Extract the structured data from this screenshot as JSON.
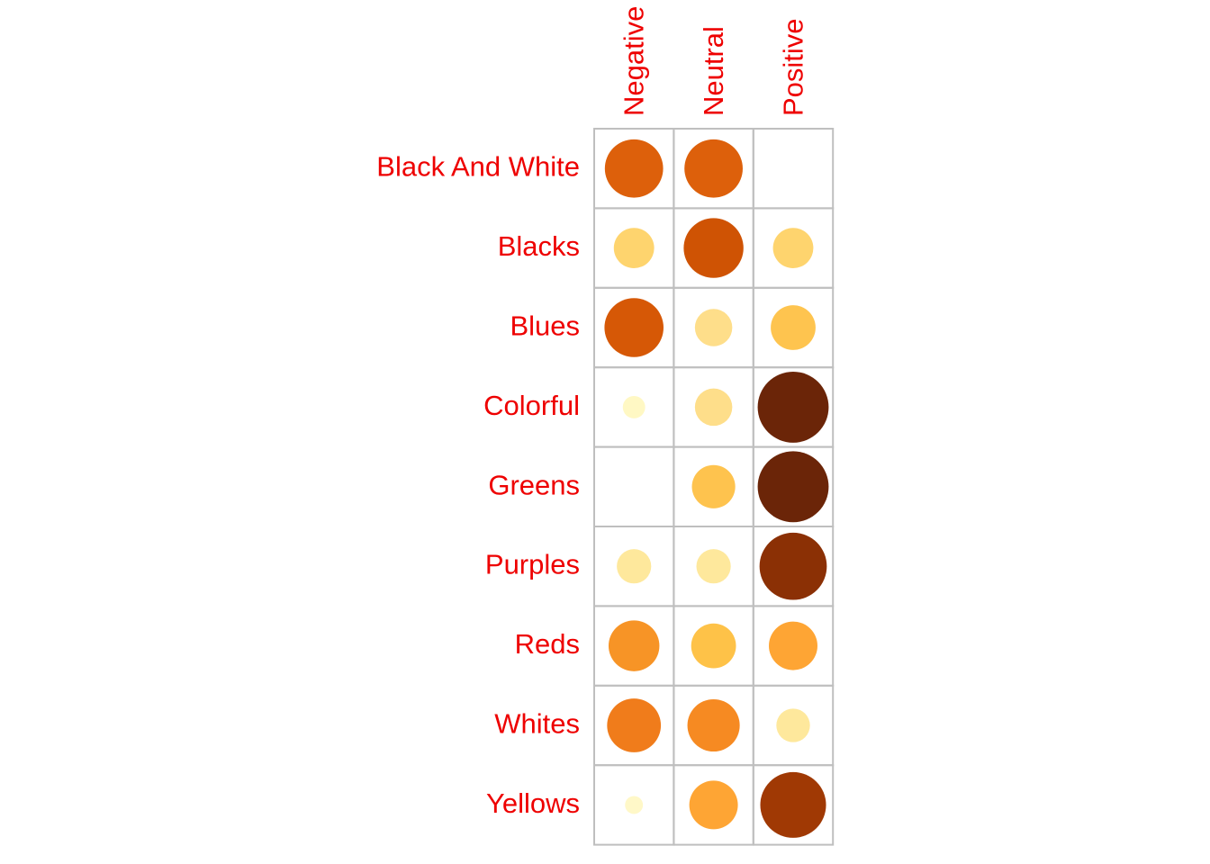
{
  "chart_data": {
    "type": "heatmap",
    "title": "",
    "xlabel": "",
    "ylabel": "",
    "columns": [
      "Negative",
      "Neutral",
      "Positive"
    ],
    "rows": [
      "Black And White",
      "Blacks",
      "Blues",
      "Colorful",
      "Greens",
      "Purples",
      "Reds",
      "Whites",
      "Yellows"
    ],
    "values": [
      [
        0.78,
        0.78,
        null
      ],
      [
        0.54,
        0.8,
        0.54
      ],
      [
        0.79,
        0.5,
        0.6
      ],
      [
        0.3,
        0.5,
        0.95
      ],
      [
        null,
        0.58,
        0.95
      ],
      [
        0.46,
        0.46,
        0.9
      ],
      [
        0.68,
        0.6,
        0.65
      ],
      [
        0.72,
        0.7,
        0.45
      ],
      [
        0.24,
        0.65,
        0.88
      ]
    ],
    "colors": [
      [
        "#dd600b",
        "#dd600b",
        null
      ],
      [
        "#fed46e",
        "#cf5304",
        "#fed46e"
      ],
      [
        "#d65806",
        "#fede8a",
        "#fec44f"
      ],
      [
        "#fff8c4",
        "#fede8a",
        "#6b2508"
      ],
      [
        null,
        "#fec34e",
        "#6b2508"
      ],
      [
        "#fee89c",
        "#fee89c",
        "#8b3005"
      ],
      [
        "#f79426",
        "#fec248",
        "#fea534"
      ],
      [
        "#f07c1b",
        "#f68a22",
        "#fee89c"
      ],
      [
        "#fff8c8",
        "#fea534",
        "#a03904"
      ]
    ],
    "label_color": "#ee0000",
    "grid_color": "#bfbfbf",
    "grid": true,
    "legend": "none"
  }
}
